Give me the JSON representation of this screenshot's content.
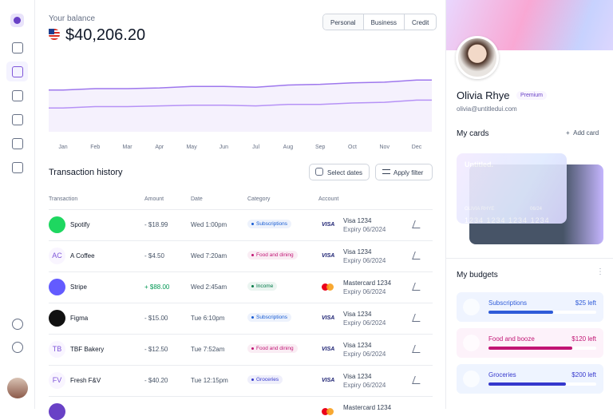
{
  "balance": {
    "label": "Your balance",
    "amount": "$40,206.20"
  },
  "tabs": [
    "Personal",
    "Business",
    "Credit"
  ],
  "chart_data": {
    "type": "line",
    "categories": [
      "Jan",
      "Feb",
      "Mar",
      "Apr",
      "May",
      "Jun",
      "Jul",
      "Aug",
      "Sep",
      "Oct",
      "Nov",
      "Dec"
    ],
    "series": [
      {
        "color": "#9e77ed",
        "values": [
          58,
          60,
          60,
          61,
          63,
          63,
          62,
          65,
          66,
          68,
          69,
          72
        ]
      },
      {
        "color": "#b692f6",
        "values": [
          33,
          35,
          35,
          36,
          37,
          37,
          36,
          38,
          38,
          40,
          41,
          44
        ]
      }
    ],
    "ylim": [
      0,
      100
    ]
  },
  "transactions": {
    "title": "Transaction history",
    "actions": [
      "Select dates",
      "Apply filter"
    ],
    "columns": [
      "Transaction",
      "Amount",
      "Date",
      "Category",
      "Account"
    ],
    "rows": [
      {
        "logo_color": "#1ed760",
        "name": "Spotify",
        "amount": "- $18.99",
        "date": "Wed 1:00pm",
        "category": "Subscriptions",
        "category_color": "#175cd3",
        "brand": "VISA",
        "account": "Visa 1234",
        "expiry": "Expiry 06/2024"
      },
      {
        "initials": "AC",
        "name": "A Coffee",
        "amount": "- $4.50",
        "date": "Wed 7:20am",
        "category": "Food and dining",
        "category_color": "#c11574",
        "brand": "VISA",
        "account": "Visa 1234",
        "expiry": "Expiry 06/2024"
      },
      {
        "logo_color": "#635bff",
        "name": "Stripe",
        "amount": "+ $88.00",
        "date": "Wed 2:45am",
        "category": "Income",
        "category_color": "#027a48",
        "account": "Mastercard 1234",
        "expiry": "Expiry 06/2024"
      },
      {
        "logo_color": "#111111",
        "name": "Figma",
        "amount": "- $15.00",
        "date": "Tue 6:10pm",
        "category": "Subscriptions",
        "category_color": "#175cd3",
        "brand": "VISA",
        "account": "Visa 1234",
        "expiry": "Expiry 06/2024"
      },
      {
        "initials": "TB",
        "name": "TBF Bakery",
        "amount": "- $12.50",
        "date": "Tue 7:52am",
        "category": "Food and dining",
        "category_color": "#c11574",
        "brand": "VISA",
        "account": "Visa 1234",
        "expiry": "Expiry 06/2024"
      },
      {
        "initials": "FV",
        "name": "Fresh F&V",
        "amount": "- $40.20",
        "date": "Tue 12:15pm",
        "category": "Groceries",
        "category_color": "#3538cd",
        "brand": "VISA",
        "account": "Visa 1234",
        "expiry": "Expiry 06/2024"
      },
      {
        "logo_color": "#6941c6",
        "account": "Mastercard 1234"
      }
    ]
  },
  "profile": {
    "name": "Olivia Rhye",
    "badge": "Premium",
    "email": "olivia@untitledui.com"
  },
  "cards": {
    "title": "My cards",
    "add": "Add card",
    "brand": "Untitled.",
    "holder": "OLIVIA RHYE",
    "expiry": "06/24",
    "number": "1234 1234 1234 1234"
  },
  "budgets": {
    "title": "My budgets",
    "items": [
      {
        "name": "Subscriptions",
        "left": "$25 left",
        "progress": 60,
        "color": "#2e5bd8",
        "bg": "#eff4ff"
      },
      {
        "name": "Food and booze",
        "left": "$120 left",
        "progress": 78,
        "color": "#c11574",
        "bg": "#fdf2fa"
      },
      {
        "name": "Groceries",
        "left": "$200 left",
        "progress": 72,
        "color": "#3538cd",
        "bg": "#eef4ff"
      }
    ]
  }
}
